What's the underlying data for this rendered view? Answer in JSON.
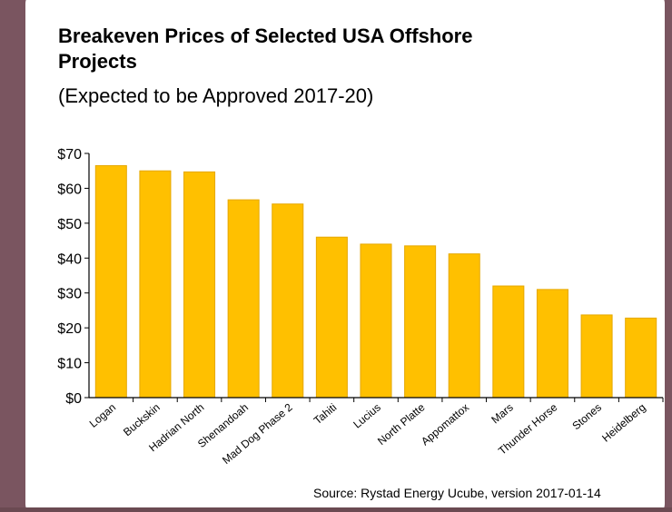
{
  "chart_data": {
    "type": "bar",
    "title": "Breakeven Prices of Selected USA Offshore Projects",
    "subtitle": "(Expected to be Approved 2017-20)",
    "source": "Source: Rystad Energy Ucube, version 2017-01-14",
    "categories": [
      "Logan",
      "Buckskin",
      "Hadrian North",
      "Shenandoah",
      "Mad Dog Phase 2",
      "Tahiti",
      "Lucius",
      "North Platte",
      "Appomattox",
      "Mars",
      "Thunder Horse",
      "Stones",
      "Heidelberg"
    ],
    "values": [
      66.5,
      65,
      64.7,
      56.7,
      55.5,
      46,
      44,
      43.5,
      41.2,
      32,
      31,
      23.7,
      22.8
    ],
    "color": "#ffc000",
    "ylim": [
      0,
      70
    ],
    "yticks": [
      {
        "value": 0,
        "label": "$0"
      },
      {
        "value": 10,
        "label": "$10"
      },
      {
        "value": 20,
        "label": "$20"
      },
      {
        "value": 30,
        "label": "$30"
      },
      {
        "value": 40,
        "label": "$40"
      },
      {
        "value": 50,
        "label": "$50"
      },
      {
        "value": 60,
        "label": "$60"
      },
      {
        "value": 70,
        "label": "$70"
      }
    ],
    "grid": false
  }
}
